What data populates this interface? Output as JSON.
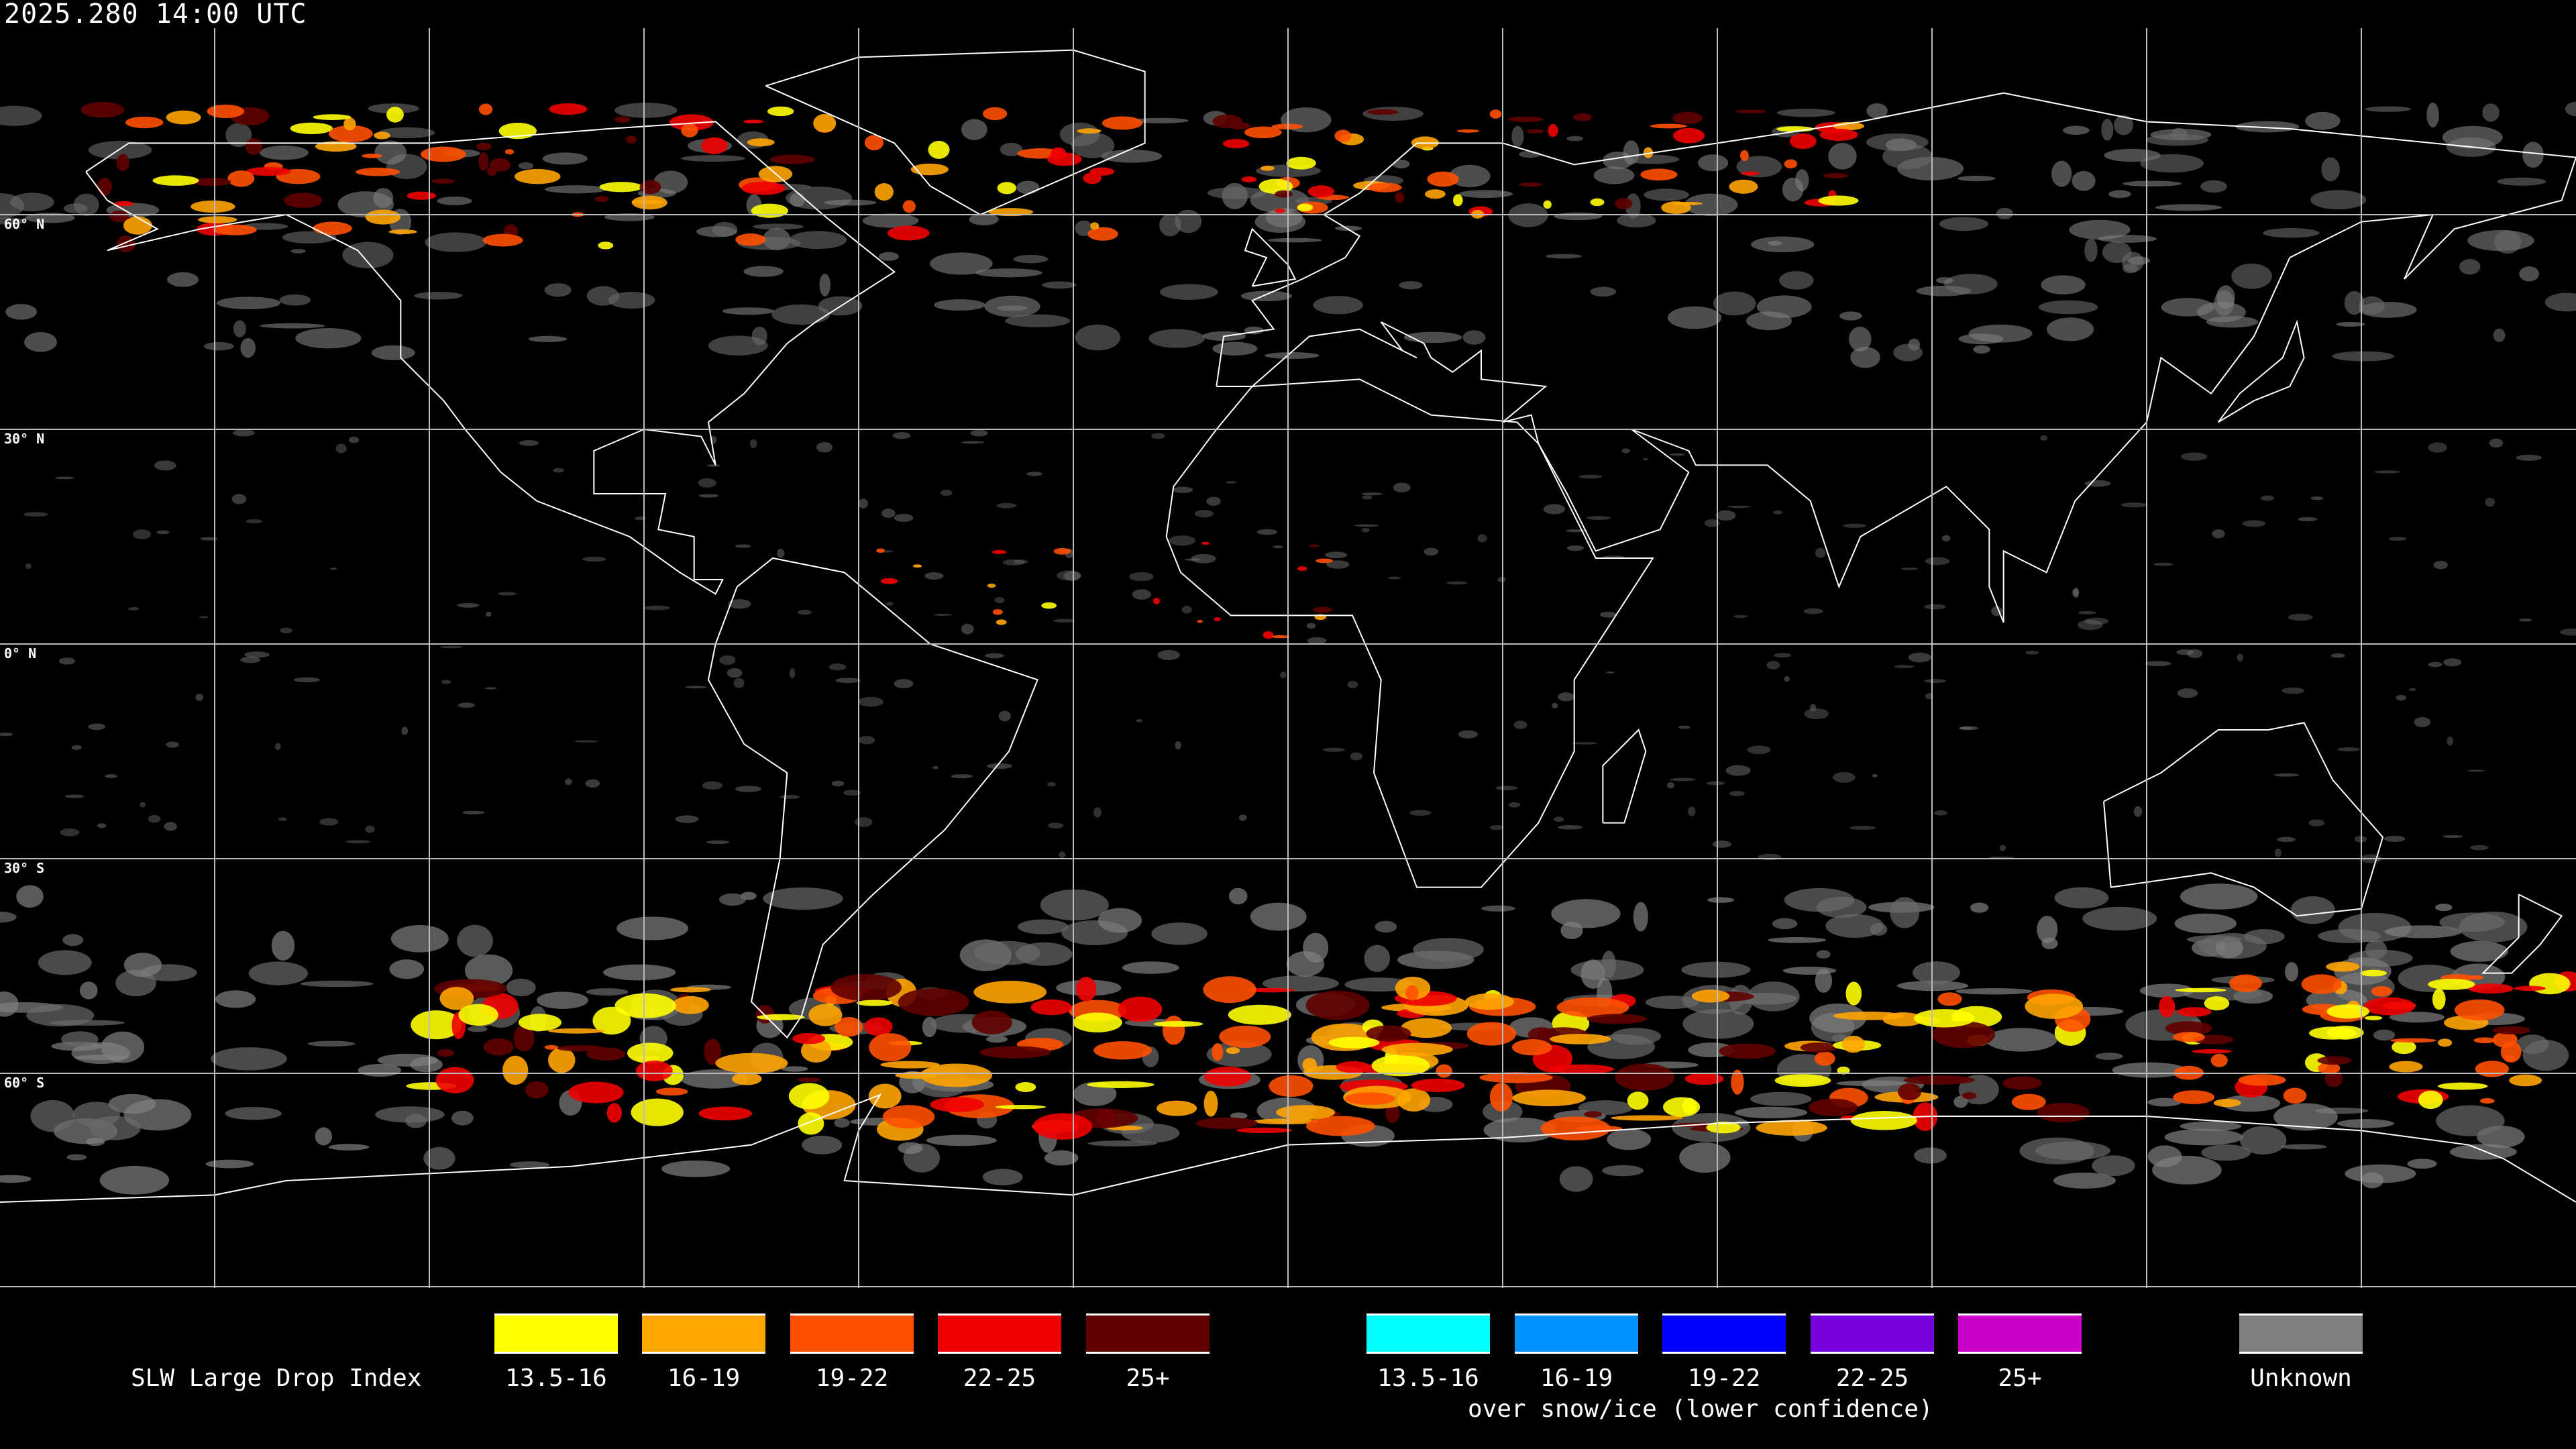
{
  "title": "2025.280 14:00 UTC",
  "lat_labels": [
    "60° N",
    "30° N",
    "0° N",
    "30° S",
    "60° S"
  ],
  "legend": {
    "label": "SLW Large Drop Index",
    "subtitle": "over snow/ice (lower confidence)",
    "normal": [
      {
        "range": "13.5-16",
        "color": "#ffff00"
      },
      {
        "range": "16-19",
        "color": "#ffa500"
      },
      {
        "range": "19-22",
        "color": "#ff5000"
      },
      {
        "range": "22-25",
        "color": "#f00000"
      },
      {
        "range": "25+",
        "color": "#600000"
      }
    ],
    "snow_ice": [
      {
        "range": "13.5-16",
        "color": "#00ffff"
      },
      {
        "range": "16-19",
        "color": "#0090ff"
      },
      {
        "range": "19-22",
        "color": "#0000ff"
      },
      {
        "range": "22-25",
        "color": "#7800dc"
      },
      {
        "range": "25+",
        "color": "#c800c8"
      }
    ],
    "unknown": {
      "range": "Unknown",
      "color": "#808080"
    }
  }
}
